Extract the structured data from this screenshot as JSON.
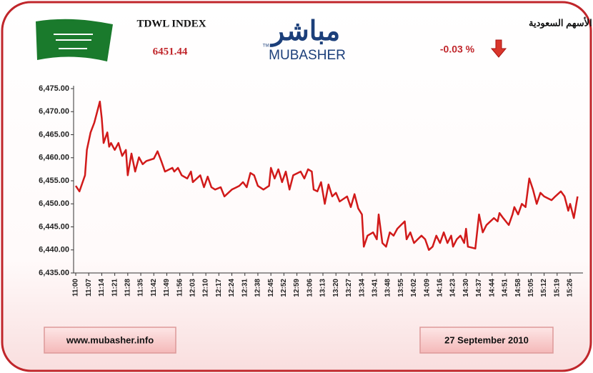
{
  "header": {
    "index_name": "TDWL INDEX",
    "index_value": "6451.44",
    "logo_arabic": "مباشر",
    "logo_latin": "MUBASHER",
    "logo_tm": "TM",
    "arabic_title": "مؤشر سوق الأسهم السعودية",
    "change": "-0.03 %"
  },
  "footer": {
    "website": "www.mubasher.info",
    "date": "27 September 2010"
  },
  "chart_data": {
    "type": "line",
    "color": "#d11a1a",
    "x": [
      "11:00",
      "11:02",
      "11:05",
      "11:06",
      "11:08",
      "11:10",
      "11:13",
      "11:14",
      "11:15",
      "11:17",
      "11:18",
      "11:19",
      "11:21",
      "11:23",
      "11:25",
      "11:27",
      "11:28",
      "11:30",
      "11:32",
      "11:34",
      "11:36",
      "11:38",
      "11:42",
      "11:44",
      "11:46",
      "11:48",
      "11:52",
      "11:53",
      "11:55",
      "11:57",
      "12:00",
      "12:02",
      "12:03",
      "12:07",
      "12:09",
      "12:11",
      "12:13",
      "12:15",
      "12:18",
      "12:20",
      "12:24",
      "12:26",
      "12:28",
      "12:30",
      "12:32",
      "12:34",
      "12:36",
      "12:38",
      "12:41",
      "12:44",
      "12:45",
      "12:47",
      "12:49",
      "12:51",
      "12:53",
      "12:55",
      "12:57",
      "13:01",
      "13:03",
      "13:05",
      "13:07",
      "13:08",
      "13:10",
      "13:12",
      "13:14",
      "13:16",
      "13:18",
      "13:20",
      "13:22",
      "13:26",
      "13:28",
      "13:30",
      "13:32",
      "13:34",
      "13:35",
      "13:37",
      "13:40",
      "13:42",
      "13:43",
      "13:45",
      "13:47",
      "13:49",
      "13:51",
      "13:53",
      "13:55",
      "13:57",
      "13:58",
      "14:00",
      "14:02",
      "14:04",
      "14:06",
      "14:08",
      "14:10",
      "14:12",
      "14:14",
      "14:16",
      "14:18",
      "14:20",
      "14:22",
      "14:23",
      "14:25",
      "14:27",
      "14:29",
      "14:30",
      "14:31",
      "14:35",
      "14:37",
      "14:39",
      "14:41",
      "14:45",
      "14:47",
      "14:48",
      "14:50",
      "14:53",
      "14:55",
      "14:56",
      "14:58",
      "15:00",
      "15:02",
      "15:04",
      "15:06",
      "15:08",
      "15:10",
      "15:12",
      "15:16",
      "15:18",
      "15:21",
      "15:23",
      "15:25",
      "15:26",
      "15:28",
      "15:30"
    ],
    "values": [
      6453.9,
      6452.7,
      6456.2,
      6461.7,
      6465.5,
      6467.6,
      6472.2,
      6468.6,
      6463.2,
      6465.5,
      6462.4,
      6463.2,
      6461.7,
      6463.2,
      6460.4,
      6461.7,
      6456.2,
      6460.9,
      6457.0,
      6460.1,
      6458.6,
      6459.3,
      6459.8,
      6461.4,
      6459.3,
      6457.0,
      6457.8,
      6457.0,
      6457.8,
      6456.2,
      6455.5,
      6457.0,
      6454.7,
      6456.2,
      6453.6,
      6455.9,
      6453.6,
      6453.1,
      6453.6,
      6451.6,
      6453.1,
      6453.5,
      6453.9,
      6454.7,
      6453.6,
      6456.7,
      6456.2,
      6453.9,
      6453.1,
      6453.9,
      6457.8,
      6455.5,
      6457.5,
      6454.7,
      6457.0,
      6453.1,
      6456.2,
      6457.0,
      6455.5,
      6457.5,
      6457.0,
      6453.1,
      6452.7,
      6454.7,
      6450.0,
      6454.2,
      6451.6,
      6452.4,
      6450.5,
      6451.6,
      6449.3,
      6452.1,
      6449.0,
      6447.7,
      6440.7,
      6443.1,
      6443.8,
      6442.3,
      6447.7,
      6441.5,
      6440.7,
      6443.8,
      6443.1,
      6444.6,
      6445.4,
      6446.2,
      6442.3,
      6443.8,
      6441.5,
      6442.3,
      6443.1,
      6442.3,
      6440.0,
      6440.7,
      6443.1,
      6441.5,
      6443.8,
      6441.5,
      6443.1,
      6440.7,
      6442.3,
      6443.1,
      6441.5,
      6444.6,
      6440.7,
      6440.3,
      6447.7,
      6443.8,
      6445.4,
      6446.9,
      6446.2,
      6448.0,
      6446.9,
      6445.4,
      6447.7,
      6449.3,
      6447.7,
      6450.0,
      6449.3,
      6455.5,
      6453.1,
      6450.0,
      6452.4,
      6451.6,
      6450.8,
      6451.6,
      6452.7,
      6451.6,
      6448.5,
      6450.0,
      6446.9,
      6451.6
    ],
    "xlim": [
      "11:00",
      "15:31"
    ],
    "xticks": [
      "11:00",
      "11:07",
      "11:14",
      "11:21",
      "11:28",
      "11:35",
      "11:42",
      "11:49",
      "11:56",
      "12:03",
      "12:10",
      "12:17",
      "12:24",
      "12:31",
      "12:38",
      "12:45",
      "12:52",
      "12:59",
      "13:06",
      "13:13",
      "13:20",
      "13:27",
      "13:34",
      "13:41",
      "13:48",
      "13:55",
      "14:02",
      "14:09",
      "14:16",
      "14:23",
      "14:30",
      "14:37",
      "14:44",
      "14:51",
      "14:58",
      "15:05",
      "15:12",
      "15:19",
      "15:26"
    ],
    "ylim": [
      6435,
      6475
    ],
    "yticks": [
      {
        "value": 6435,
        "label": "6,435.00"
      },
      {
        "value": 6440,
        "label": "6,440.00"
      },
      {
        "value": 6445,
        "label": "6,445.00"
      },
      {
        "value": 6450,
        "label": "6,450.00"
      },
      {
        "value": 6455,
        "label": "6,455.00"
      },
      {
        "value": 6460,
        "label": "6,460.00"
      },
      {
        "value": 6465,
        "label": "6,465.00"
      },
      {
        "value": 6470,
        "label": "6,470.00"
      },
      {
        "value": 6475,
        "label": "6,475.00"
      }
    ]
  }
}
